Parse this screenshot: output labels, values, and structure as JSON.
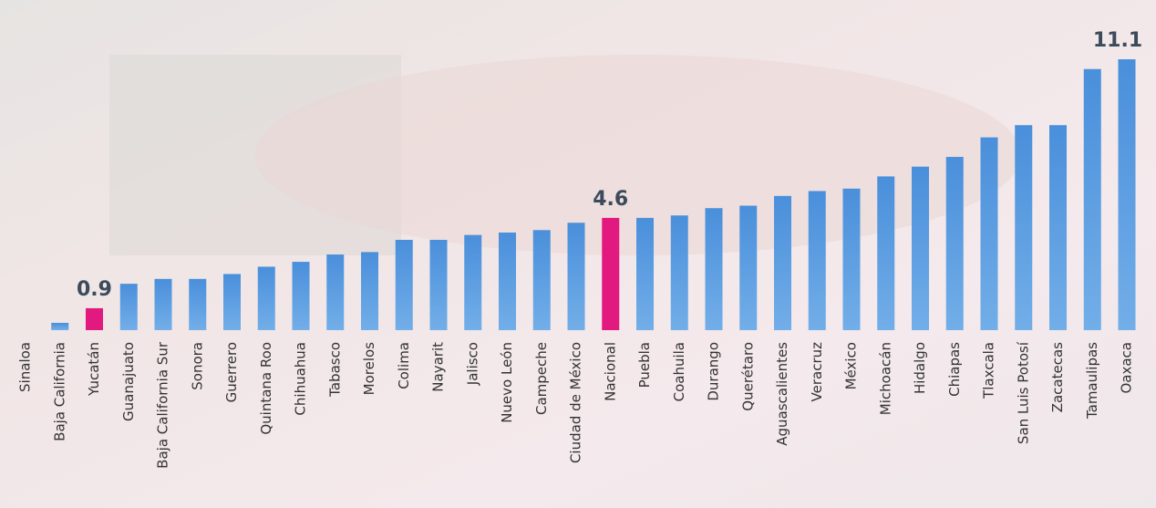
{
  "chart_data": {
    "type": "bar",
    "categories": [
      "Sinaloa",
      "Baja California",
      "Yucatán",
      "Guanajuato",
      "Baja California Sur",
      "Sonora",
      "Guerrero",
      "Quintana Roo",
      "Chihuahua",
      "Tabasco",
      "Morelos",
      "Colima",
      "Nayarit",
      "Jalisco",
      "Nuevo León",
      "Campeche",
      "Ciudad de México",
      "Nacional",
      "Puebla",
      "Coahuila",
      "Durango",
      "Querétaro",
      "Aguascalientes",
      "Veracruz",
      "México",
      "Michoacán",
      "Hidalgo",
      "Chiapas",
      "Tlaxcala",
      "San Luis Potosí",
      "Zacatecas",
      "Tamaulipas",
      "Oaxaca"
    ],
    "values": [
      0,
      0.3,
      0.9,
      1.9,
      2.1,
      2.1,
      2.3,
      2.6,
      2.8,
      3.1,
      3.2,
      3.7,
      3.7,
      3.9,
      4.0,
      4.1,
      4.4,
      4.6,
      4.6,
      4.7,
      5.0,
      5.1,
      5.5,
      5.7,
      5.8,
      6.3,
      6.7,
      7.1,
      7.9,
      8.4,
      8.4,
      10.7,
      11.1
    ],
    "color": "#4f94dc",
    "highlight_color": "#e2197f",
    "highlight_indices": [
      2,
      17
    ],
    "labeled_indices": [
      2,
      17,
      32
    ],
    "ylim": [
      0,
      11.1
    ]
  }
}
